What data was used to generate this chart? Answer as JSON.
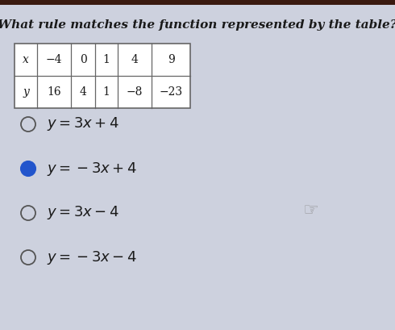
{
  "title": "What rule matches the function represented by the table?",
  "table": {
    "x_label": "x",
    "y_label": "y",
    "x_values": [
      "−4",
      "0",
      "1",
      "4",
      "9"
    ],
    "y_values": [
      "16",
      "4",
      "1",
      "−8",
      "−23"
    ]
  },
  "options": [
    {
      "latex": "$y=3x+4$",
      "selected": false
    },
    {
      "latex": "$y=-3x+4$",
      "selected": true
    },
    {
      "latex": "$y=3x-4$",
      "selected": false
    },
    {
      "latex": "$y=-3x-4$",
      "selected": false
    }
  ],
  "bg_color": "#cdd1de",
  "title_color": "#1a1a1a",
  "text_color": "#1a1a1a",
  "table_bg": "#ffffff",
  "table_border": "#666666",
  "selected_fill": "#2255cc",
  "selected_edge": "#2255cc",
  "unselected_fill": "none",
  "unselected_edge": "#555555",
  "top_bar_color": "#3a1a10",
  "top_bar_height": 0.012
}
